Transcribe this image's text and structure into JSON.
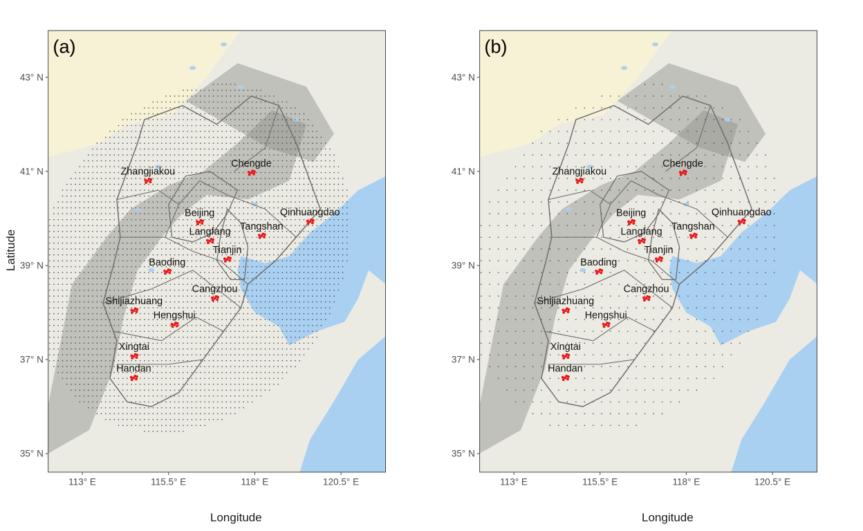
{
  "panels": [
    {
      "tag": "(a)",
      "grid_spacing_deg": 0.125
    },
    {
      "tag": "(b)",
      "grid_spacing_deg": 0.25
    }
  ],
  "axes": {
    "xlabel": "Longitude",
    "ylabel": "Latitude",
    "x_ticks": [
      {
        "lon": 113.0,
        "label": "113° E"
      },
      {
        "lon": 115.5,
        "label": "115.5° E"
      },
      {
        "lon": 118.0,
        "label": "118° E"
      },
      {
        "lon": 120.5,
        "label": "120.5° E"
      }
    ],
    "y_ticks": [
      {
        "lat": 43,
        "label": "43° N"
      },
      {
        "lat": 41,
        "label": "41° N"
      },
      {
        "lat": 39,
        "label": "39° N"
      },
      {
        "lat": 37,
        "label": "37° N"
      },
      {
        "lat": 35,
        "label": "35° N"
      }
    ],
    "lon_range": [
      112.0,
      121.8
    ],
    "lat_range": [
      34.6,
      44.0
    ]
  },
  "cities": [
    {
      "name": "Zhangjiakou",
      "lon": 114.9,
      "lat": 40.8
    },
    {
      "name": "Chengde",
      "lon": 117.9,
      "lat": 40.97
    },
    {
      "name": "Beijing",
      "lon": 116.4,
      "lat": 39.92
    },
    {
      "name": "Qinhuangdao",
      "lon": 119.6,
      "lat": 39.93
    },
    {
      "name": "Tangshan",
      "lon": 118.2,
      "lat": 39.63
    },
    {
      "name": "Langfang",
      "lon": 116.7,
      "lat": 39.52
    },
    {
      "name": "Baoding",
      "lon": 115.46,
      "lat": 38.87
    },
    {
      "name": "Tianjin",
      "lon": 117.2,
      "lat": 39.13
    },
    {
      "name": "Shijiazhuang",
      "lon": 114.5,
      "lat": 38.04
    },
    {
      "name": "Cangzhou",
      "lon": 116.84,
      "lat": 38.3
    },
    {
      "name": "Hengshui",
      "lon": 115.67,
      "lat": 37.74
    },
    {
      "name": "Xingtai",
      "lon": 114.5,
      "lat": 37.07
    },
    {
      "name": "Handan",
      "lon": 114.49,
      "lat": 36.61
    }
  ],
  "colors": {
    "land": "#ecebe3",
    "mountain": "#8e8e8a",
    "water": "#a9d0f1",
    "inner_mongolia_tint": "#f7f1d6",
    "grid_point": "#4a4a4a",
    "station": "#e8141a",
    "boundary": "#6b6b6b"
  }
}
